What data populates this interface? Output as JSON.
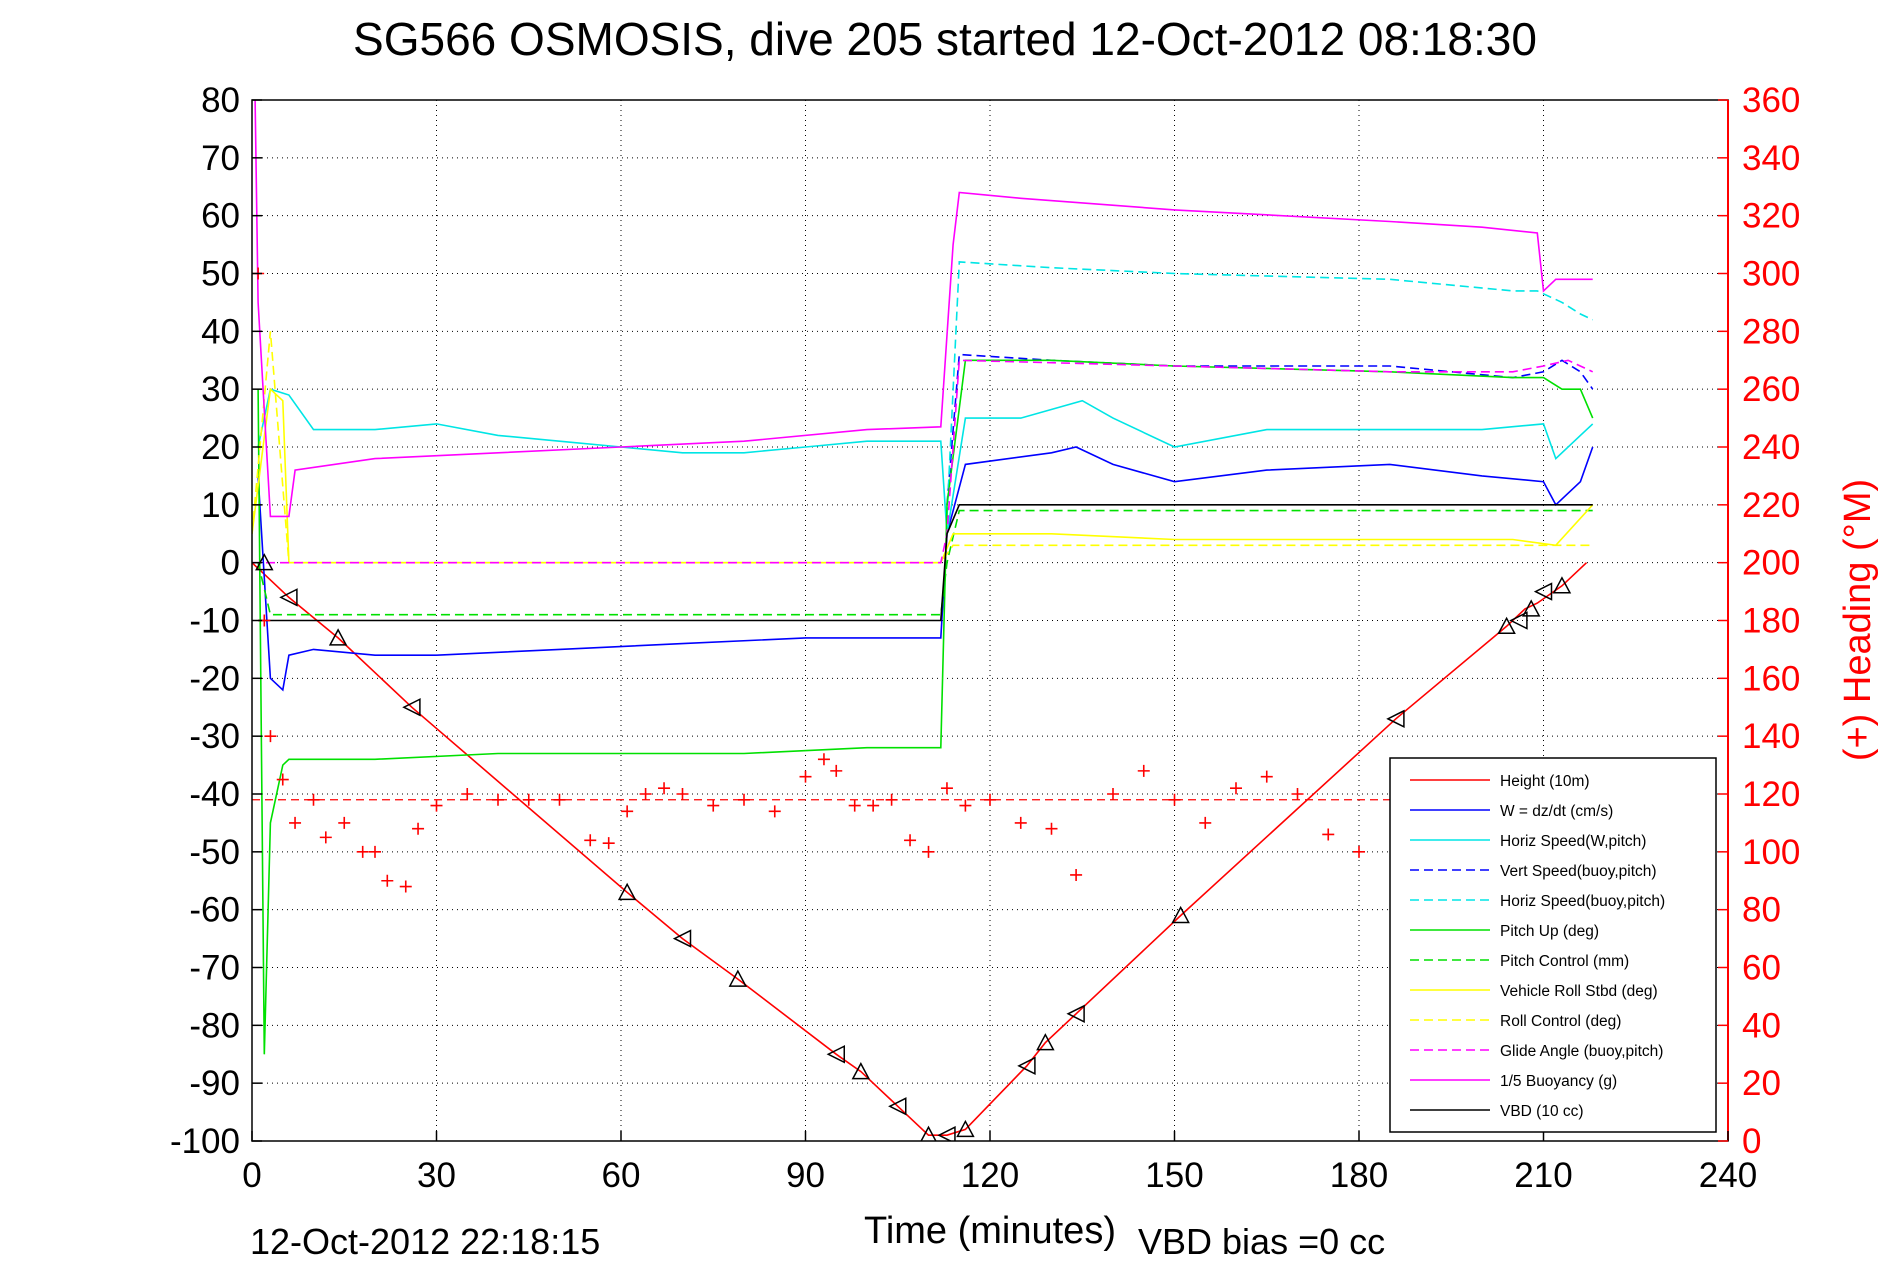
{
  "chart_data": {
    "type": "line",
    "title": "SG566 OSMOSIS, dive 205 started 12-Oct-2012 08:18:30",
    "xlabel": "Time (minutes)",
    "ylabel_right": "(+) Heading (°M)",
    "xlim": [
      0,
      240
    ],
    "ylim_left": [
      -100,
      80
    ],
    "ylim_right": [
      0,
      360
    ],
    "x_ticks": [
      0,
      30,
      60,
      90,
      120,
      150,
      180,
      210,
      240
    ],
    "x_tick_labels": [
      "0",
      "30",
      "60",
      "90",
      "120",
      "150",
      "180",
      "210",
      "240"
    ],
    "y_left_ticks": [
      80,
      70,
      60,
      50,
      40,
      30,
      20,
      10,
      0,
      -10,
      -20,
      -30,
      -40,
      -50,
      -60,
      -70,
      -80,
      -90,
      -100
    ],
    "y_left_tick_labels": [
      "80",
      "70",
      "60",
      "50",
      "40",
      "30",
      "20",
      "10",
      "0",
      "-10",
      "-20",
      "-30",
      "-40",
      "-50",
      "-60",
      "-70",
      "-80",
      "-90",
      "-100"
    ],
    "y_right_ticks": [
      360,
      340,
      320,
      300,
      280,
      260,
      240,
      220,
      200,
      180,
      160,
      140,
      120,
      100,
      80,
      60,
      40,
      20,
      0
    ],
    "y_right_tick_labels": [
      "360",
      "340",
      "320",
      "300",
      "280",
      "260",
      "240",
      "220",
      "200",
      "180",
      "160",
      "140",
      "120",
      "100",
      "80",
      "60",
      "40",
      "20",
      "0"
    ],
    "grid": true,
    "legend_position": "bottom-right",
    "footer_left": "12-Oct-2012 22:18:15",
    "footer_right": "VBD bias =0 cc",
    "series": [
      {
        "name": "Height (10m)",
        "color": "#ff0000",
        "style": "solid",
        "axis": "left",
        "x": [
          0,
          2,
          6,
          14,
          26,
          61,
          70,
          79,
          95,
          99,
          105,
          110,
          113,
          116,
          126,
          129,
          134,
          151,
          186,
          204,
          207,
          209,
          213,
          217
        ],
        "y": [
          0,
          -2,
          -6,
          -13,
          -25,
          -57,
          -65,
          -72,
          -85,
          -88,
          -94,
          -99,
          -99,
          -98,
          -87,
          -83,
          -78,
          -61,
          -27,
          -11,
          -8,
          -7,
          -4,
          0
        ]
      },
      {
        "name": "W = dz/dt (cm/s)",
        "color": "#0000ff",
        "style": "solid",
        "axis": "left",
        "x": [
          1,
          3,
          5,
          6,
          10,
          20,
          30,
          50,
          70,
          90,
          100,
          112,
          113,
          116,
          130,
          134,
          140,
          150,
          165,
          185,
          200,
          210,
          212,
          216,
          218
        ],
        "y": [
          15,
          -20,
          -22,
          -16,
          -15,
          -16,
          -16,
          -15,
          -14,
          -13,
          -13,
          -13,
          5,
          17,
          19,
          20,
          17,
          14,
          16,
          17,
          15,
          14,
          10,
          14,
          20
        ]
      },
      {
        "name": "Horiz Speed(W,pitch)",
        "color": "#00e5e5",
        "style": "solid",
        "axis": "left",
        "x": [
          1,
          3,
          6,
          10,
          20,
          30,
          40,
          50,
          60,
          70,
          80,
          90,
          100,
          112,
          113,
          116,
          125,
          135,
          140,
          150,
          165,
          185,
          200,
          210,
          212,
          216,
          218
        ],
        "y": [
          20,
          30,
          29,
          23,
          23,
          24,
          22,
          21,
          20,
          19,
          19,
          20,
          21,
          21,
          5,
          25,
          25,
          28,
          25,
          20,
          23,
          23,
          23,
          24,
          18,
          22,
          24
        ]
      },
      {
        "name": "Vert Speed(buoy,pitch)",
        "color": "#0000ff",
        "style": "dashed",
        "axis": "left",
        "x": [
          113,
          115,
          130,
          150,
          185,
          205,
          210,
          213,
          216,
          218
        ],
        "y": [
          10,
          36,
          35,
          34,
          34,
          32,
          33,
          35,
          33,
          30
        ]
      },
      {
        "name": "Horiz Speed(buoy,pitch)",
        "color": "#00e5e5",
        "style": "dashed",
        "axis": "left",
        "x": [
          113,
          115,
          130,
          150,
          185,
          205,
          209,
          213,
          216,
          218
        ],
        "y": [
          8,
          52,
          51,
          50,
          49,
          47,
          47,
          45,
          43,
          42
        ]
      },
      {
        "name": "Pitch Up (deg)",
        "color": "#00e000",
        "style": "solid",
        "axis": "left",
        "x": [
          1,
          2,
          3,
          5,
          6,
          10,
          20,
          40,
          60,
          80,
          100,
          110,
          112,
          113,
          116,
          130,
          150,
          185,
          205,
          210,
          213,
          216,
          218
        ],
        "y": [
          30,
          -85,
          -45,
          -35,
          -34,
          -34,
          -34,
          -33,
          -33,
          -33,
          -32,
          -32,
          -32,
          10,
          35,
          35,
          34,
          33,
          32,
          32,
          30,
          30,
          25
        ]
      },
      {
        "name": "Pitch Control (mm)",
        "color": "#00e000",
        "style": "dashed",
        "axis": "left",
        "x": [
          1,
          3,
          6,
          20,
          60,
          100,
          112,
          113,
          115,
          150,
          185,
          218
        ],
        "y": [
          0,
          -9,
          -9,
          -9,
          -9,
          -9,
          -9,
          0,
          9,
          9,
          9,
          9
        ]
      },
      {
        "name": "Vehicle Roll Stbd (deg)",
        "color": "#ffff00",
        "style": "solid",
        "axis": "left",
        "x": [
          0,
          3,
          5,
          6,
          10,
          30,
          60,
          90,
          112,
          114,
          130,
          150,
          185,
          205,
          212,
          218
        ],
        "y": [
          5,
          30,
          28,
          0,
          0,
          0,
          0,
          0,
          0,
          5,
          5,
          4,
          4,
          4,
          3,
          10
        ]
      },
      {
        "name": "Roll Control (deg)",
        "color": "#ffff00",
        "style": "dashed",
        "axis": "left",
        "x": [
          0,
          3,
          6,
          30,
          60,
          112,
          114,
          150,
          185,
          218
        ],
        "y": [
          5,
          40,
          0,
          0,
          0,
          0,
          3,
          3,
          3,
          3
        ]
      },
      {
        "name": "Glide Angle (buoy,pitch)",
        "color": "#ff00ff",
        "style": "dashed",
        "axis": "left",
        "x": [
          0,
          5,
          30,
          60,
          90,
          112,
          113,
          115,
          150,
          185,
          205,
          210,
          214,
          218
        ],
        "y": [
          0,
          0,
          0,
          0,
          0,
          0,
          5,
          35,
          34,
          33,
          33,
          34,
          35,
          33
        ]
      },
      {
        "name": "1/5 Buoyancy (g)",
        "color": "#ff00ff",
        "style": "solid",
        "axis": "left",
        "x": [
          0.5,
          1,
          3,
          4,
          6,
          7,
          20,
          40,
          60,
          80,
          100,
          112,
          114,
          115,
          125,
          150,
          185,
          200,
          209,
          210,
          212,
          218
        ],
        "y": [
          80,
          45,
          8,
          8,
          8,
          16,
          18,
          19,
          20,
          21,
          23,
          23.5,
          55,
          64,
          63,
          61,
          59,
          58,
          57,
          47,
          49,
          49
        ]
      },
      {
        "name": "VBD (10 cc)",
        "color": "#000000",
        "style": "solid",
        "axis": "left",
        "x": [
          1,
          3,
          6,
          20,
          60,
          100,
          112,
          113,
          115,
          150,
          185,
          218
        ],
        "y": [
          -10,
          -10,
          -10,
          -10,
          -10,
          -10,
          -10,
          5,
          10,
          10,
          10,
          10
        ]
      },
      {
        "name": "Heading",
        "color": "#ff0000",
        "style": "markers-plus",
        "axis": "right",
        "x": [
          1,
          2,
          3,
          5,
          7,
          10,
          12,
          15,
          18,
          20,
          22,
          25,
          27,
          30,
          35,
          40,
          45,
          50,
          55,
          58,
          61,
          64,
          67,
          70,
          75,
          80,
          85,
          90,
          93,
          95,
          98,
          101,
          104,
          107,
          110,
          113,
          116,
          120,
          125,
          130,
          134,
          140,
          145,
          150,
          155,
          160,
          165,
          170,
          175,
          180,
          186
        ],
        "y": [
          300,
          180,
          140,
          125,
          110,
          118,
          105,
          110,
          100,
          100,
          90,
          88,
          108,
          116,
          120,
          118,
          118,
          118,
          104,
          103,
          114,
          120,
          122,
          120,
          116,
          118,
          114,
          126,
          132,
          128,
          116,
          116,
          118,
          104,
          100,
          122,
          116,
          118,
          110,
          108,
          92,
          120,
          128,
          118,
          110,
          122,
          126,
          120,
          106,
          100,
          102
        ]
      }
    ],
    "height_markers": {
      "x": [
        2,
        6,
        14,
        26,
        61,
        70,
        79,
        95,
        99,
        105,
        110,
        113,
        116,
        126,
        129,
        134,
        151,
        186,
        204,
        206,
        208,
        210,
        213
      ],
      "y": [
        0,
        -6,
        -13,
        -25,
        -57,
        -65,
        -72,
        -85,
        -88,
        -94,
        -99,
        -99,
        -98,
        -87,
        -83,
        -78,
        -61,
        -27,
        -11,
        -10,
        -8,
        -5,
        -4
      ]
    },
    "reference_lines": [
      {
        "axis": "right",
        "value": 118,
        "color": "#ff0000",
        "style": "dashed",
        "x": [
          0,
          218
        ]
      }
    ]
  }
}
